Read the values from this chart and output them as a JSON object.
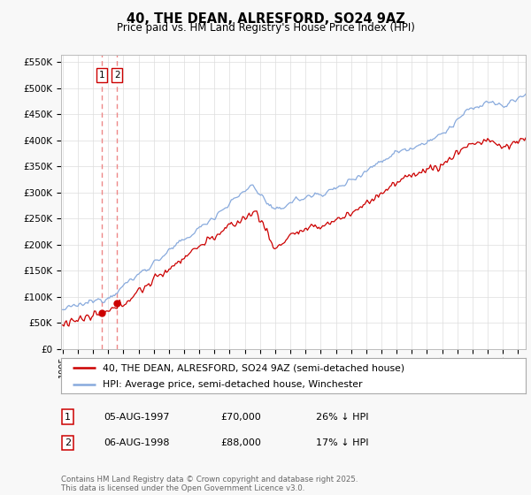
{
  "title": "40, THE DEAN, ALRESFORD, SO24 9AZ",
  "subtitle": "Price paid vs. HM Land Registry's House Price Index (HPI)",
  "legend_line1": "40, THE DEAN, ALRESFORD, SO24 9AZ (semi-detached house)",
  "legend_line2": "HPI: Average price, semi-detached house, Winchester",
  "footer1": "Contains HM Land Registry data © Crown copyright and database right 2025.",
  "footer2": "This data is licensed under the Open Government Licence v3.0.",
  "table_rows": [
    {
      "num": "1",
      "date": "05-AUG-1997",
      "price": "£70,000",
      "hpi": "26% ↓ HPI"
    },
    {
      "num": "2",
      "date": "06-AUG-1998",
      "price": "£88,000",
      "hpi": "17% ↓ HPI"
    }
  ],
  "vline1_year": 1997.58,
  "vline2_year": 1998.58,
  "dot1_year": 1997.58,
  "dot1_price": 70000,
  "dot2_year": 1998.58,
  "dot2_price": 88000,
  "ylim": [
    0,
    565000
  ],
  "yticks": [
    0,
    50000,
    100000,
    150000,
    200000,
    250000,
    300000,
    350000,
    400000,
    450000,
    500000,
    550000
  ],
  "ytick_labels": [
    "£0",
    "£50K",
    "£100K",
    "£150K",
    "£200K",
    "£250K",
    "£300K",
    "£350K",
    "£400K",
    "£450K",
    "£500K",
    "£550K"
  ],
  "red_color": "#cc0000",
  "blue_color": "#88aadd",
  "vline_color": "#ee8888",
  "plot_bg_color": "#ffffff",
  "grid_color": "#dddddd",
  "fig_bg_color": "#f8f8f8"
}
